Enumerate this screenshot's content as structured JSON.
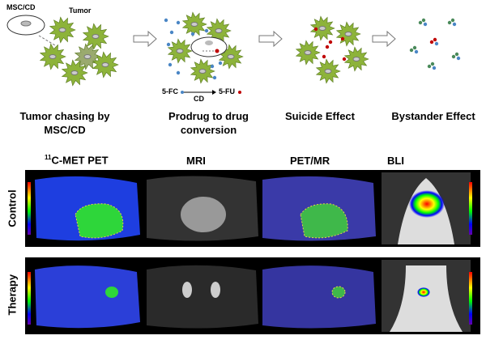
{
  "diagram": {
    "msc_label": "MSC/CD",
    "tumor_label": "Tumor",
    "reaction": {
      "substrate": "5-FC",
      "product": "5-FU",
      "enzyme": "CD"
    },
    "steps": [
      {
        "caption": "Tumor chasing by MSC/CD"
      },
      {
        "caption": "Prodrug to drug conversion"
      },
      {
        "caption": "Suicide Effect"
      },
      {
        "caption": "Bystander Effect"
      }
    ],
    "colors": {
      "tumor": "#8db33a",
      "prodrug": "#4a86c5",
      "drug": "#c00000"
    }
  },
  "imaging": {
    "columns": [
      "11C-MET PET",
      "MRI",
      "PET/MR",
      "BLI"
    ],
    "pet_sup": "11",
    "pet_rest": "C-MET PET",
    "rows": [
      "Control",
      "Therapy"
    ]
  }
}
